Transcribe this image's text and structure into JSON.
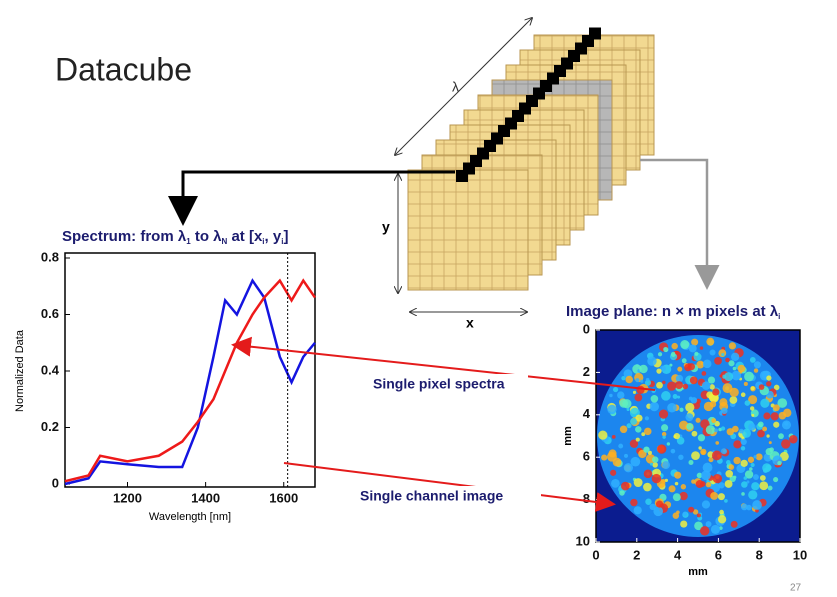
{
  "slide": {
    "title": "Datacube",
    "page_number": "27"
  },
  "cube": {
    "lambda_label": "λ",
    "y_label": "y",
    "x_label": "x"
  },
  "annotations": {
    "pixel": "Single pixel spectra",
    "channel": "Single channel image"
  },
  "spectrum": {
    "type": "line",
    "title_parts": [
      "Spectrum: from λ",
      "1",
      " to λ",
      "N",
      " at [x",
      "i",
      ", y",
      "i",
      "]"
    ],
    "xlabel": "Wavelength [nm]",
    "ylabel": "Normalized Data",
    "x": [
      1040,
      1100,
      1130,
      1200,
      1280,
      1340,
      1380,
      1420,
      1450,
      1480,
      1520,
      1550,
      1590,
      1620,
      1650,
      1680
    ],
    "series": [
      {
        "color": "#1414e0",
        "values": [
          0,
          0.02,
          0.08,
          0.07,
          0.06,
          0.06,
          0.2,
          0.45,
          0.65,
          0.6,
          0.72,
          0.66,
          0.45,
          0.36,
          0.45,
          0.5
        ]
      },
      {
        "color": "#ee1a1a",
        "values": [
          0.01,
          0.03,
          0.1,
          0.08,
          0.1,
          0.15,
          0.22,
          0.3,
          0.4,
          0.5,
          0.6,
          0.66,
          0.72,
          0.65,
          0.72,
          0.66
        ]
      }
    ],
    "xlim": [
      1040,
      1680
    ],
    "ylim": [
      0,
      0.8
    ],
    "xticks": [
      1200,
      1400,
      1600
    ],
    "yticks": [
      0,
      0.2,
      0.4,
      0.6,
      0.8
    ],
    "channel": 1610
  },
  "image_plane": {
    "title_parts": [
      "Image plane: n × m pixels at λ",
      "i"
    ],
    "xlabel": "mm",
    "ylabel": "mm",
    "xlim": [
      0,
      10
    ],
    "ylim": [
      0,
      10
    ],
    "y_inverted": true,
    "xticks": [
      0,
      2,
      4,
      6,
      8,
      10
    ],
    "yticks": [
      0,
      2,
      4,
      6,
      8,
      10
    ]
  }
}
